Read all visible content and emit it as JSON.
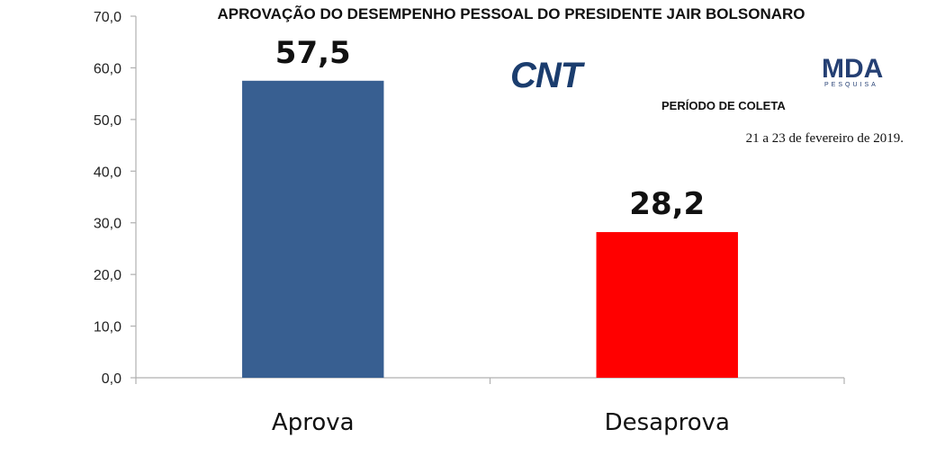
{
  "chart_data": {
    "type": "bar",
    "title": "APROVAÇÃO DO DESEMPENHO PESSOAL DO PRESIDENTE JAIR BOLSONARO",
    "categories": [
      "Aprova",
      "Desaprova"
    ],
    "values": [
      57.5,
      28.2
    ],
    "value_labels": [
      "57,5",
      "28,2"
    ],
    "colors": [
      "#385f91",
      "#ff0000"
    ],
    "ylim": [
      0,
      70
    ],
    "yticks": [
      "0,0",
      "10,0",
      "20,0",
      "30,0",
      "40,0",
      "50,0",
      "60,0",
      "70,0"
    ],
    "xlabel": "",
    "ylabel": "",
    "grid": false
  },
  "logos": {
    "cnt": "CNT",
    "mda": "MDA",
    "mda_sub": "PESQUISA"
  },
  "period": {
    "title": "PERÍODO DE COLETA",
    "dates": "21 a 23 de fevereiro de 2019."
  }
}
